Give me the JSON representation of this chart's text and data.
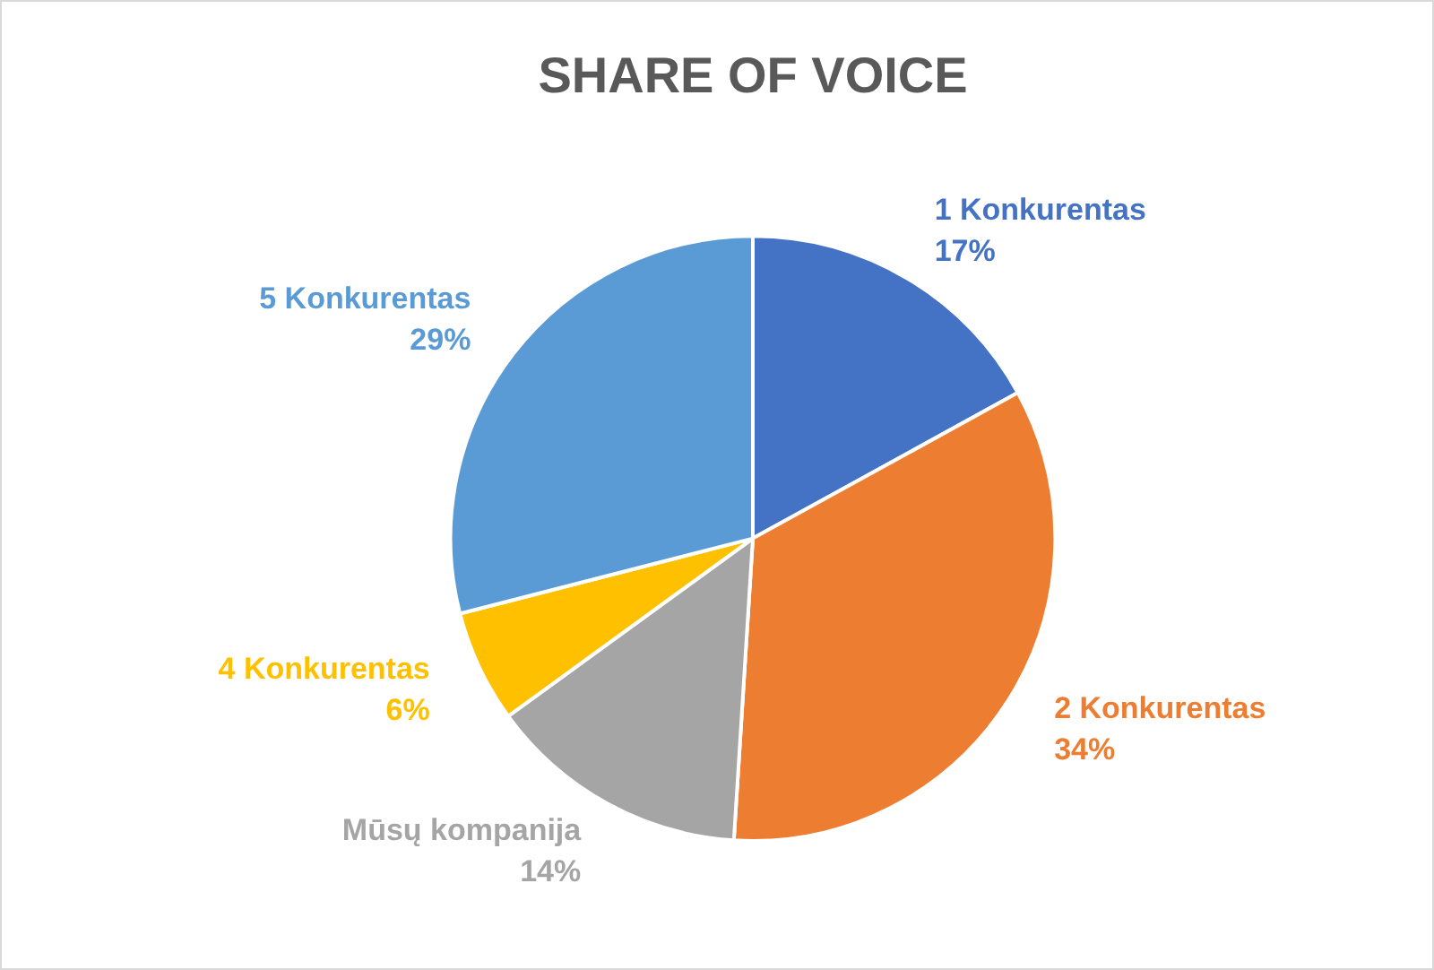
{
  "chart_data": {
    "type": "pie",
    "title": "SHARE OF VOICE",
    "categories": [
      "1 Konkurentas",
      "2 Konkurentas",
      "Mūsų kompanija",
      "4 Konkurentas",
      "5 Konkurentas"
    ],
    "values": [
      17,
      34,
      14,
      6,
      29
    ],
    "value_labels": [
      "17%",
      "34%",
      "14%",
      "6%",
      "29%"
    ],
    "colors": [
      "#4472c4",
      "#ed7d31",
      "#a5a5a5",
      "#ffc000",
      "#5b9bd5"
    ],
    "legend": false
  }
}
